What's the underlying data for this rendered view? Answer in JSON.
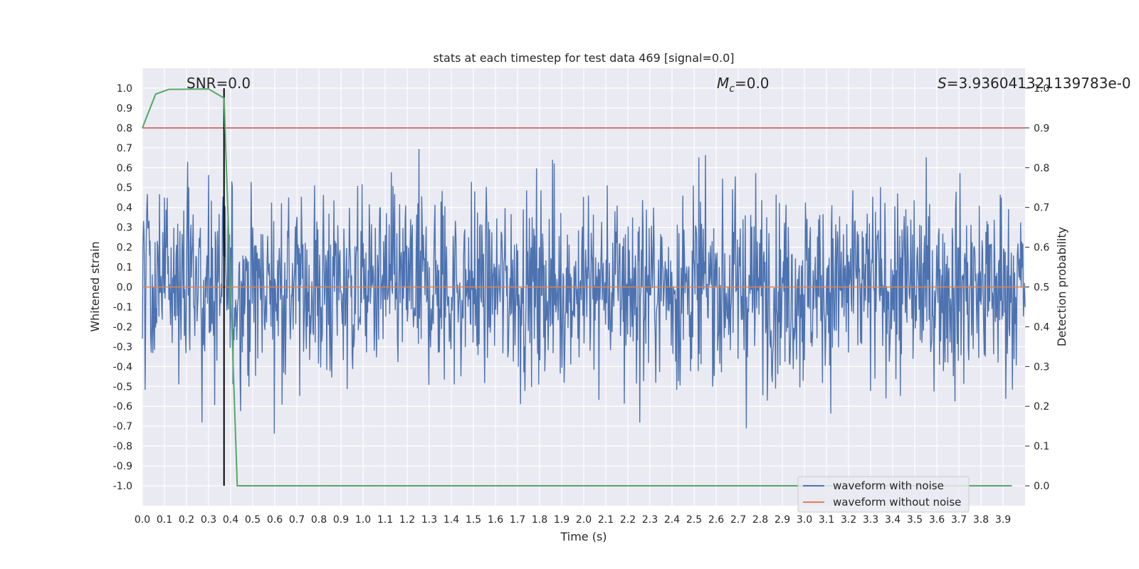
{
  "chart_data": {
    "type": "line",
    "title": "stats at each timestep for test data 469 [signal=0.0]",
    "xlabel": "Time (s)",
    "ylabel": "Whitened strain",
    "ylabel_right": "Detection probability",
    "xlim": [
      0.0,
      4.0
    ],
    "ylim": [
      -1.1,
      1.1
    ],
    "ylim_right": [
      -0.05,
      1.05
    ],
    "grid": true,
    "x_ticks": [
      "0.0",
      "0.1",
      "0.2",
      "0.3",
      "0.4",
      "0.5",
      "0.6",
      "0.7",
      "0.8",
      "0.9",
      "1.0",
      "1.1",
      "1.2",
      "1.3",
      "1.4",
      "1.5",
      "1.6",
      "1.7",
      "1.8",
      "1.9",
      "2.0",
      "2.1",
      "2.2",
      "2.3",
      "2.4",
      "2.5",
      "2.6",
      "2.7",
      "2.8",
      "2.9",
      "3.0",
      "3.1",
      "3.2",
      "3.3",
      "3.4",
      "3.5",
      "3.6",
      "3.7",
      "3.8",
      "3.9"
    ],
    "y_ticks": [
      "1.0",
      "0.9",
      "0.8",
      "0.7",
      "0.6",
      "0.5",
      "0.4",
      "0.3",
      "0.2",
      "0.1",
      "0.0",
      "-0.1",
      "-0.2",
      "-0.3",
      "-0.4",
      "-0.5",
      "-0.6",
      "-0.7",
      "-0.8",
      "-0.9",
      "-1.0"
    ],
    "y_ticks_right": [
      "1.0",
      "0.9",
      "0.8",
      "0.7",
      "0.6",
      "0.5",
      "0.4",
      "0.3",
      "0.2",
      "0.1",
      "0.0"
    ],
    "annotations": [
      "SNR=0.0",
      "M",
      "c",
      "=0.0",
      "S",
      "=3.936041321139783e-0"
    ],
    "legend": {
      "placement": "lower-right",
      "entries": [
        "waveform with noise",
        "waveform without noise"
      ]
    },
    "series": [
      {
        "name": "waveform with noise",
        "color": "#4c72b0",
        "axis": "left",
        "kind": "noise",
        "amplitude_range": [
          -0.97,
          0.99
        ]
      },
      {
        "name": "waveform without noise",
        "color": "#dd8452",
        "axis": "left",
        "values_constant": 0.0
      },
      {
        "color": "#55a868",
        "axis": "right",
        "x": [
          0.0,
          0.06,
          0.12,
          0.3,
          0.37,
          0.43,
          0.5,
          1.0,
          2.0,
          3.0,
          3.94
        ],
        "values": [
          0.9,
          0.985,
          0.997,
          0.998,
          0.975,
          0.0,
          0.0,
          0.0,
          0.0,
          0.0,
          0.0
        ]
      }
    ],
    "threshold_right": {
      "value": 0.9,
      "color": "#c44e52"
    },
    "vline_x": {
      "value": 0.37,
      "color": "#000000",
      "ymin": -1.0,
      "ymax": 1.0
    }
  }
}
